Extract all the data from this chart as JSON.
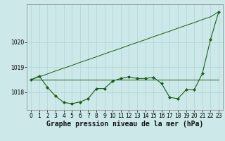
{
  "bg_color": "#cce8e8",
  "grid_color": "#b0d4d4",
  "line_color": "#1a5c1a",
  "xlabel": "Graphe pression niveau de la mer (hPa)",
  "xlabel_fontsize": 7,
  "tick_fontsize": 5.5,
  "xlim": [
    -0.5,
    23.5
  ],
  "ylim": [
    1017.3,
    1021.5
  ],
  "yticks": [
    1018,
    1019,
    1020
  ],
  "xticks": [
    0,
    1,
    2,
    3,
    4,
    5,
    6,
    7,
    8,
    9,
    10,
    11,
    12,
    13,
    14,
    15,
    16,
    17,
    18,
    19,
    20,
    21,
    22,
    23
  ],
  "series_main": [
    1018.5,
    1018.65,
    1018.2,
    1017.85,
    1017.6,
    1017.55,
    1017.62,
    1017.75,
    1018.15,
    1018.15,
    1018.45,
    1018.55,
    1018.62,
    1018.55,
    1018.55,
    1018.6,
    1018.35,
    1017.8,
    1017.75,
    1018.1,
    1018.1,
    1018.75,
    1020.1,
    1021.2
  ],
  "series_flat": [
    1018.5,
    1018.5,
    1018.5,
    1018.5,
    1018.5,
    1018.5,
    1018.5,
    1018.5,
    1018.5,
    1018.5,
    1018.5,
    1018.5,
    1018.5,
    1018.5,
    1018.5,
    1018.5,
    1018.5,
    1018.5,
    1018.5,
    1018.5,
    1018.5,
    1018.5,
    1018.5,
    1018.5
  ],
  "series_trend": [
    1018.5,
    1018.62,
    1018.73,
    1018.85,
    1018.96,
    1019.07,
    1019.19,
    1019.3,
    1019.41,
    1019.53,
    1019.64,
    1019.75,
    1019.87,
    1019.98,
    1020.09,
    1020.21,
    1020.32,
    1020.43,
    1020.55,
    1020.66,
    1020.77,
    1020.89,
    1021.0,
    1021.2
  ]
}
